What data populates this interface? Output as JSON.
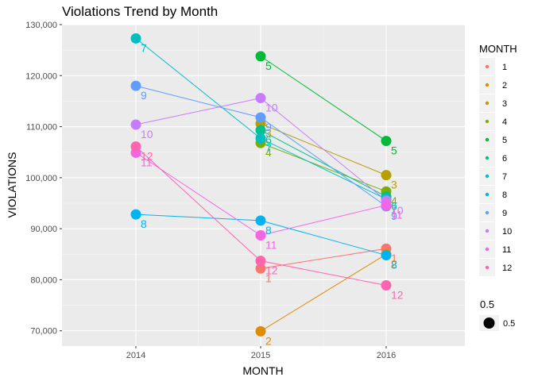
{
  "chart_data": {
    "type": "line",
    "title": "Violations Trend by Month",
    "xlabel": "MONTH",
    "ylabel": "VIOLATIONS",
    "x": [
      "2014",
      "2015",
      "2016"
    ],
    "ylim": [
      67000,
      130000
    ],
    "yticks": [
      70000,
      80000,
      90000,
      100000,
      110000,
      120000,
      130000
    ],
    "ytick_labels": [
      "70,000",
      "80,000",
      "90,000",
      "100,000",
      "110,000",
      "120,000",
      "130,000"
    ],
    "grid": true,
    "legend_position": "right",
    "series": [
      {
        "name": "1",
        "label": "1",
        "color": "#F8766D",
        "values": [
          null,
          82200,
          86100
        ]
      },
      {
        "name": "2",
        "label": "2",
        "color": "#DE8C00",
        "values": [
          null,
          69900,
          85000
        ]
      },
      {
        "name": "3",
        "label": "3",
        "color": "#B79F00",
        "values": [
          null,
          110600,
          100500
        ]
      },
      {
        "name": "4",
        "label": "4",
        "color": "#7CAE00",
        "values": [
          null,
          106800,
          97300
        ]
      },
      {
        "name": "5",
        "label": "5",
        "color": "#00BA38",
        "values": [
          null,
          123800,
          107200
        ]
      },
      {
        "name": "6",
        "label": "6",
        "color": "#00C08B",
        "values": [
          null,
          109300,
          96300
        ]
      },
      {
        "name": "7",
        "label": "7",
        "color": "#00BFC4",
        "values": [
          127300,
          107700,
          95800
        ]
      },
      {
        "name": "8",
        "label": "8",
        "color": "#00B4F0",
        "values": [
          92800,
          91600,
          84800
        ]
      },
      {
        "name": "9",
        "label": "9",
        "color": "#619CFF",
        "values": [
          118000,
          111800,
          94400
        ]
      },
      {
        "name": "10",
        "label": "10",
        "color": "#C77CFF",
        "values": [
          110400,
          115600,
          95500
        ]
      },
      {
        "name": "11",
        "label": "11",
        "color": "#F564E3",
        "values": [
          104900,
          88700,
          94600
        ]
      },
      {
        "name": "12",
        "label": "12",
        "color": "#FF64B0",
        "values": [
          106100,
          83700,
          78900
        ]
      }
    ],
    "legend": {
      "title": "MONTH",
      "size_title": "0.5",
      "size_label": "0.5"
    }
  }
}
